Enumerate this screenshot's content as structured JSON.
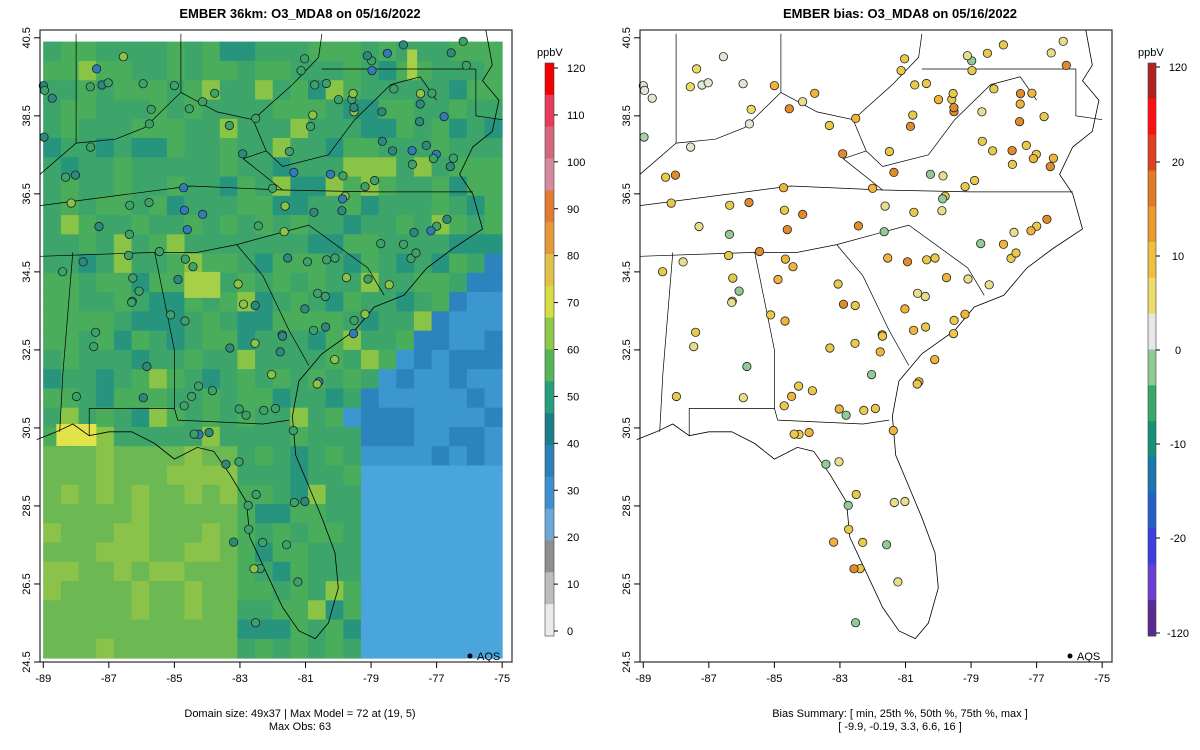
{
  "left": {
    "title": "EMBER 36km: O3_MDA8 on 05/16/2022",
    "footer_line1": "Domain size: 49x37 | Max Model = 72 at (19, 5)",
    "footer_line2": "Max Obs: 63",
    "legend_label": "AQS",
    "colorbar": {
      "unit": "ppbV",
      "ticks": [
        0,
        10,
        20,
        30,
        40,
        50,
        60,
        70,
        80,
        90,
        100,
        110,
        120
      ]
    }
  },
  "right": {
    "title": "EMBER bias: O3_MDA8 on 05/16/2022",
    "footer_line1": "Bias Summary: [ min, 25th %, 50th %, 75th %, max ]",
    "footer_line2": "[ -9.9,  -0.19,  3.3,  6.6,  16 ]",
    "legend_label": "AQS",
    "colorbar": {
      "unit": "ppbV",
      "ticks": [
        -120,
        -20,
        -10,
        0,
        10,
        20,
        120
      ]
    }
  },
  "axes": {
    "x_ticks": [
      "-89",
      "-87",
      "-85",
      "-83",
      "-81",
      "-79",
      "-77",
      "-75"
    ],
    "y_ticks": [
      "24.5",
      "26.5",
      "28.5",
      "30.5",
      "32.5",
      "34.5",
      "36.5",
      "38.5",
      "40.5"
    ],
    "lon_range": [
      -89.1,
      -74.7
    ],
    "lat_range": [
      24.5,
      40.7
    ]
  },
  "colors": {
    "ocean_low": "#4aa5dc",
    "model_mid": "#3da56a",
    "model_high": "#e2e24a",
    "bias_pos": "#e9a92c",
    "bias_neg": "#7ec389"
  }
}
